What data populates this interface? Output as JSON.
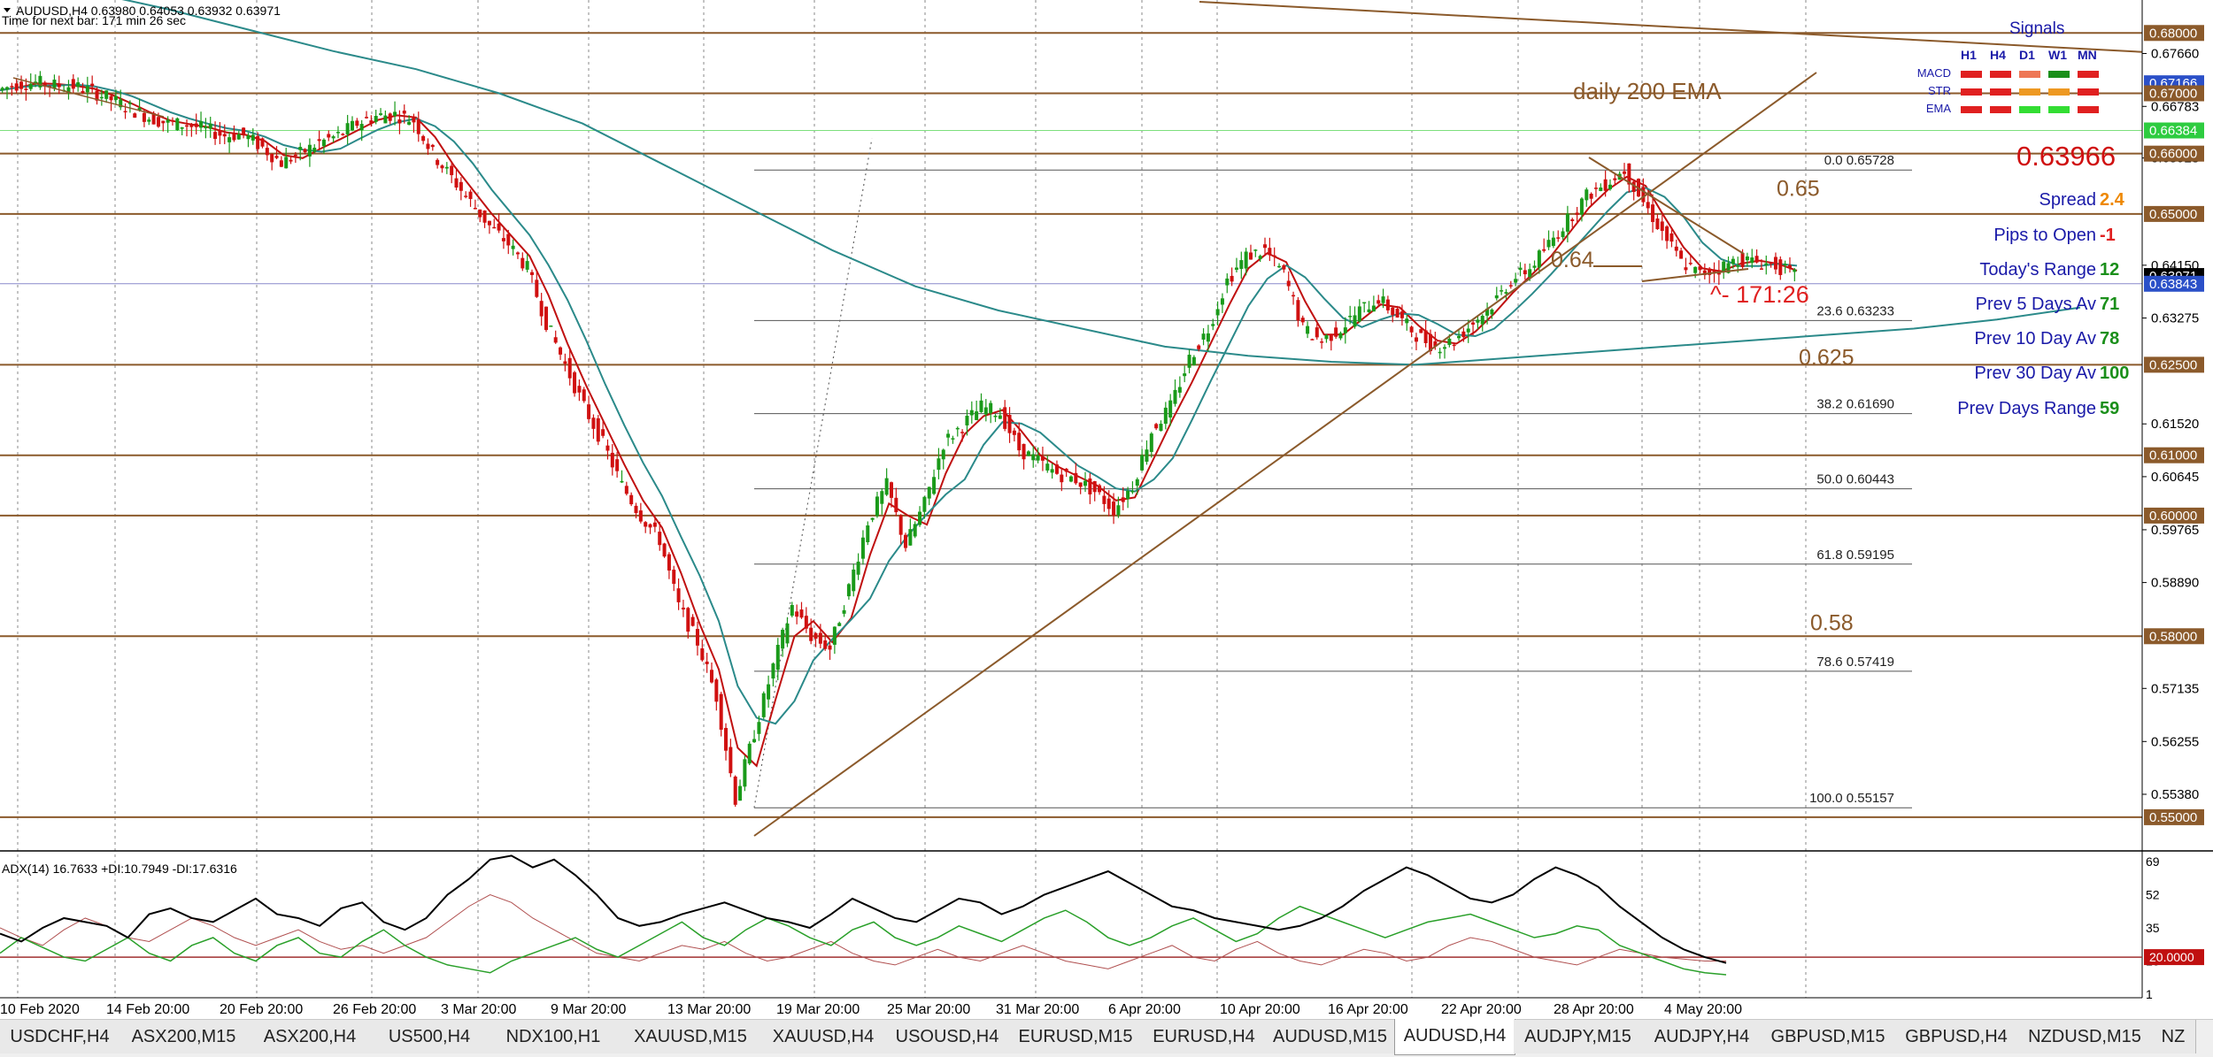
{
  "header": {
    "symbol_line": "AUDUSD,H4  0.63980 0.64053 0.63932 0.63971",
    "timer_line": "Time for next bar: 171 min 26 sec"
  },
  "chart_data": {
    "type": "candlestick",
    "symbol": "AUDUSD",
    "timeframe": "H4",
    "ylim": [
      0.545,
      0.684
    ],
    "price_axis_ticks": [
      "0.67660",
      "0.66783",
      "0.65928",
      "0.64150",
      "0.63275",
      "0.61520",
      "0.60645",
      "0.59765",
      "0.58890",
      "0.57135",
      "0.56255",
      "0.55380"
    ],
    "price_boxes": [
      {
        "price": 0.68,
        "label": "0.68000",
        "color": "#8b5a2b"
      },
      {
        "price": 0.67166,
        "label": "0.67166",
        "color": "#2b50c8"
      },
      {
        "price": 0.67,
        "label": "0.67000",
        "color": "#8b5a2b"
      },
      {
        "price": 0.66384,
        "label": "0.66384",
        "color": "#2ecc40"
      },
      {
        "price": 0.66,
        "label": "0.66000",
        "color": "#8b5a2b"
      },
      {
        "price": 0.65,
        "label": "0.65000",
        "color": "#8b5a2b"
      },
      {
        "price": 0.63971,
        "label": "0.63971",
        "color": "#000000"
      },
      {
        "price": 0.63843,
        "label": "0.63843",
        "color": "#2b50c8"
      },
      {
        "price": 0.625,
        "label": "0.62500",
        "color": "#8b5a2b"
      },
      {
        "price": 0.61,
        "label": "0.61000",
        "color": "#8b5a2b"
      },
      {
        "price": 0.6,
        "label": "0.60000",
        "color": "#8b5a2b"
      },
      {
        "price": 0.58,
        "label": "0.58000",
        "color": "#8b5a2b"
      },
      {
        "price": 0.55,
        "label": "0.55000",
        "color": "#8b5a2b"
      }
    ],
    "horizontal_levels": [
      0.68,
      0.67,
      0.66,
      0.65,
      0.625,
      0.61,
      0.6,
      0.58,
      0.55
    ],
    "level_labels": [
      {
        "text": "0.65",
        "price": 0.653
      },
      {
        "text": "0.64",
        "price": 0.6412
      },
      {
        "text": "0.625",
        "price": 0.625
      },
      {
        "text": "0.58",
        "price": 0.581
      }
    ],
    "fibonacci": [
      {
        "level": "0.0",
        "price": "0.65728"
      },
      {
        "level": "23.6",
        "price": "0.63233"
      },
      {
        "level": "38.2",
        "price": "0.61690"
      },
      {
        "level": "50.0",
        "price": "0.60443"
      },
      {
        "level": "61.8",
        "price": "0.59195"
      },
      {
        "level": "78.6",
        "price": "0.57419"
      },
      {
        "level": "100.0",
        "price": "0.55157"
      }
    ],
    "x_labels": [
      "10 Feb 2020",
      "14 Feb 20:00",
      "20 Feb 20:00",
      "26 Feb 20:00",
      "3 Mar 20:00",
      "9 Mar 20:00",
      "13 Mar 20:00",
      "19 Mar 20:00",
      "25 Mar 20:00",
      "31 Mar 20:00",
      "6 Apr 20:00",
      "10 Apr 20:00",
      "16 Apr 20:00",
      "22 Apr 20:00",
      "28 Apr 20:00",
      "4 May 20:00"
    ],
    "price_path": [
      0.6705,
      0.6715,
      0.6718,
      0.6713,
      0.6712,
      0.6703,
      0.669,
      0.6675,
      0.666,
      0.665,
      0.6648,
      0.664,
      0.663,
      0.6632,
      0.661,
      0.6585,
      0.66,
      0.6618,
      0.663,
      0.665,
      0.6662,
      0.6665,
      0.6655,
      0.66,
      0.656,
      0.652,
      0.648,
      0.645,
      0.641,
      0.632,
      0.625,
      0.618,
      0.612,
      0.605,
      0.6,
      0.596,
      0.585,
      0.579,
      0.57,
      0.553,
      0.564,
      0.575,
      0.585,
      0.58,
      0.578,
      0.588,
      0.599,
      0.605,
      0.595,
      0.602,
      0.612,
      0.615,
      0.618,
      0.617,
      0.611,
      0.609,
      0.607,
      0.606,
      0.604,
      0.601,
      0.605,
      0.614,
      0.618,
      0.626,
      0.631,
      0.639,
      0.643,
      0.644,
      0.64,
      0.631,
      0.629,
      0.631,
      0.634,
      0.636,
      0.633,
      0.63,
      0.628,
      0.629,
      0.632,
      0.635,
      0.639,
      0.641,
      0.645,
      0.649,
      0.653,
      0.655,
      0.6573,
      0.652,
      0.647,
      0.642,
      0.64,
      0.641,
      0.6425,
      0.642,
      0.6415,
      0.6397
    ],
    "ema_daily_200_path": [
      0.6895,
      0.687,
      0.684,
      0.6805,
      0.677,
      0.674,
      0.67,
      0.665,
      0.658,
      0.651,
      0.644,
      0.638,
      0.634,
      0.631,
      0.628,
      0.6265,
      0.6255,
      0.625,
      0.626,
      0.627,
      0.628,
      0.629,
      0.63,
      0.631,
      0.6325,
      0.6345
    ],
    "annotations": {
      "ema_label": "daily 200 EMA",
      "countdown": "^- 171:26"
    },
    "indicator": {
      "name": "ADX(14)",
      "header": "ADX(14) 16.7633 +DI:10.7949 -DI:17.6316",
      "ticks": [
        "69",
        "52",
        "35",
        "18",
        "1"
      ],
      "level_box": "20.0000",
      "adx": [
        32,
        28,
        35,
        40,
        38,
        36,
        30,
        42,
        45,
        40,
        38,
        44,
        50,
        42,
        40,
        36,
        45,
        48,
        38,
        34,
        40,
        52,
        60,
        70,
        72,
        66,
        70,
        62,
        52,
        40,
        36,
        38,
        42,
        45,
        48,
        44,
        40,
        38,
        35,
        42,
        50,
        45,
        40,
        38,
        44,
        50,
        48,
        42,
        46,
        52,
        56,
        60,
        64,
        58,
        52,
        46,
        44,
        40,
        38,
        36,
        34,
        36,
        40,
        46,
        54,
        60,
        66,
        62,
        56,
        50,
        48,
        52,
        60,
        66,
        62,
        56,
        46,
        38,
        30,
        24,
        20,
        17
      ],
      "plus_di": [
        22,
        30,
        25,
        20,
        18,
        24,
        30,
        22,
        18,
        26,
        30,
        22,
        18,
        26,
        30,
        22,
        20,
        28,
        34,
        26,
        20,
        16,
        14,
        12,
        18,
        22,
        26,
        30,
        24,
        20,
        26,
        32,
        38,
        30,
        26,
        34,
        40,
        36,
        30,
        26,
        34,
        38,
        30,
        26,
        30,
        36,
        32,
        28,
        34,
        40,
        44,
        38,
        30,
        26,
        30,
        36,
        40,
        34,
        28,
        32,
        40,
        46,
        42,
        38,
        34,
        30,
        34,
        38,
        40,
        42,
        38,
        34,
        30,
        32,
        36,
        34,
        26,
        22,
        18,
        14,
        12,
        11
      ],
      "minus_di": [
        35,
        30,
        26,
        34,
        40,
        36,
        30,
        28,
        34,
        40,
        36,
        30,
        26,
        30,
        34,
        28,
        24,
        26,
        22,
        26,
        30,
        38,
        46,
        52,
        48,
        40,
        34,
        28,
        22,
        20,
        18,
        22,
        26,
        24,
        28,
        22,
        18,
        20,
        24,
        28,
        22,
        18,
        16,
        20,
        24,
        20,
        18,
        22,
        26,
        22,
        18,
        16,
        14,
        18,
        22,
        26,
        20,
        18,
        24,
        28,
        22,
        18,
        16,
        20,
        24,
        22,
        18,
        20,
        26,
        30,
        28,
        24,
        20,
        18,
        16,
        20,
        24,
        22,
        20,
        19,
        18,
        18
      ]
    }
  },
  "signals": {
    "title": "Signals",
    "columns": [
      "H1",
      "H4",
      "D1",
      "W1",
      "MN"
    ],
    "rows": [
      {
        "label": "MACD",
        "colors": [
          "#e02020",
          "#e02020",
          "#ee7755",
          "#1a8f1a",
          "#e02020"
        ]
      },
      {
        "label": "STR",
        "colors": [
          "#e02020",
          "#e02020",
          "#ee9922",
          "#ee9922",
          "#e02020"
        ]
      },
      {
        "label": "EMA",
        "colors": [
          "#e02020",
          "#e02020",
          "#33dd33",
          "#33dd33",
          "#e02020"
        ]
      }
    ]
  },
  "stats": {
    "current_price": "0.63966",
    "items": [
      {
        "label": "Spread",
        "value": "2.4",
        "color": "#ee8800"
      },
      {
        "label": "Pips to Open",
        "value": "-1",
        "color": "#e02020"
      },
      {
        "label": "Today's Range",
        "value": "12",
        "color": "#1a8f1a"
      },
      {
        "label": "Prev 5 Days Av",
        "value": "71",
        "color": "#1a8f1a"
      },
      {
        "label": "Prev 10 Day Av",
        "value": "78",
        "color": "#1a8f1a"
      },
      {
        "label": "Prev 30 Day Av",
        "value": "100",
        "color": "#1a8f1a"
      },
      {
        "label": "Prev Days Range",
        "value": "59",
        "color": "#1a8f1a"
      }
    ]
  },
  "tabs": [
    {
      "label": "USDCHF,H4",
      "active": false
    },
    {
      "label": "ASX200,M15",
      "active": false
    },
    {
      "label": "ASX200,H4",
      "active": false
    },
    {
      "label": "US500,H4",
      "active": false
    },
    {
      "label": "NDX100,H1",
      "active": false
    },
    {
      "label": "XAUUSD,M15",
      "active": false
    },
    {
      "label": "XAUUSD,H4",
      "active": false
    },
    {
      "label": "USOUSD,H4",
      "active": false
    },
    {
      "label": "EURUSD,M15",
      "active": false
    },
    {
      "label": "EURUSD,H4",
      "active": false
    },
    {
      "label": "AUDUSD,M15",
      "active": false
    },
    {
      "label": "AUDUSD,H4",
      "active": true
    },
    {
      "label": "AUDJPY,M15",
      "active": false
    },
    {
      "label": "AUDJPY,H4",
      "active": false
    },
    {
      "label": "GBPUSD,M15",
      "active": false
    },
    {
      "label": "GBPUSD,H4",
      "active": false
    },
    {
      "label": "NZDUSD,M15",
      "active": false
    },
    {
      "label": "NZ",
      "active": false
    }
  ],
  "colors": {
    "level_line": "#8b5a2b",
    "bull_candle": "#1a9a1a",
    "bear_candle": "#d01010",
    "ema_fast": "#c01010",
    "ema_slow": "#2b8a8a",
    "fib_line": "#555555",
    "signals_blue": "#1a1aa8",
    "countdown_red": "#e02020",
    "adx_line": "#000000",
    "plus_di": "#2aa02a",
    "minus_di": "#b05050"
  }
}
